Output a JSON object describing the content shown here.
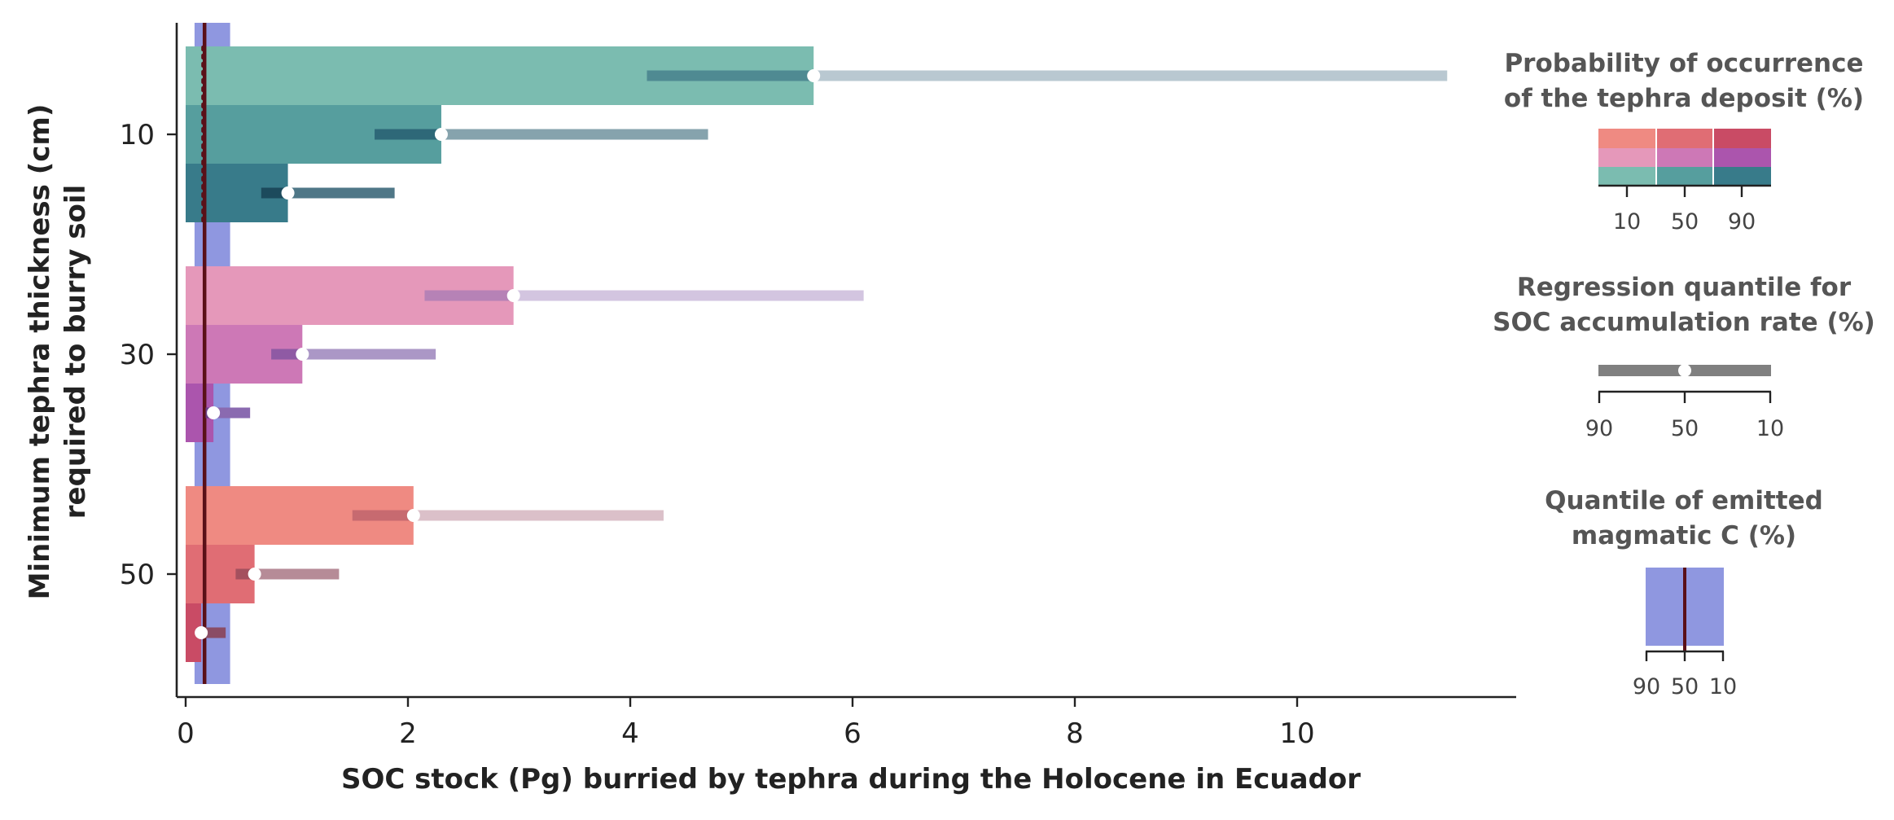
{
  "chart_data": {
    "type": "bar",
    "orientation": "horizontal",
    "xlabel": "SOC stock (Pg) burried by tephra during the Holocene in Ecuador",
    "ylabel_line1": "Minimum tephra thickness (cm)",
    "ylabel_line2": "required to burry soil",
    "xlim": [
      0,
      11.9
    ],
    "xticks": [
      "0",
      "2",
      "4",
      "6",
      "8",
      "10"
    ],
    "xtick_values": [
      0,
      2,
      4,
      6,
      8,
      10
    ],
    "yticks": [
      "10",
      "30",
      "50"
    ],
    "grid": false,
    "magmatic_c": {
      "q90": 0.08,
      "q50": 0.17,
      "q10": 0.4,
      "reference_dotted": 0.17,
      "color": "#8f97e0",
      "line_color": "#5a1018"
    },
    "groups": [
      {
        "thickness": "10",
        "bars": [
          {
            "probability": "10",
            "value": 5.65,
            "q_low": 4.15,
            "q_high": 11.35,
            "color": "#7bbcb0",
            "err_dark": "#4f8a92",
            "err_light": "#b9c8d1"
          },
          {
            "probability": "50",
            "value": 2.3,
            "q_low": 1.7,
            "q_high": 4.7,
            "color": "#569e9e",
            "err_dark": "#2e6878",
            "err_light": "#86a3ad"
          },
          {
            "probability": "90",
            "value": 0.92,
            "q_low": 0.68,
            "q_high": 1.88,
            "color": "#387b8a",
            "err_dark": "#1c4a5c",
            "err_light": "#4f7787"
          }
        ]
      },
      {
        "thickness": "30",
        "bars": [
          {
            "probability": "10",
            "value": 2.95,
            "q_low": 2.15,
            "q_high": 6.1,
            "color": "#e598ba",
            "err_dark": "#b682b6",
            "err_light": "#d3c5e0"
          },
          {
            "probability": "50",
            "value": 1.05,
            "q_low": 0.77,
            "q_high": 2.25,
            "color": "#cd78b6",
            "err_dark": "#8f5aa4",
            "err_light": "#ab97c6"
          },
          {
            "probability": "90",
            "value": 0.25,
            "q_low": 0.18,
            "q_high": 0.58,
            "color": "#ab55ad",
            "err_dark": "#6a3f8a",
            "err_light": "#8a6ab0"
          }
        ]
      },
      {
        "thickness": "50",
        "bars": [
          {
            "probability": "10",
            "value": 2.05,
            "q_low": 1.5,
            "q_high": 4.3,
            "color": "#ef8a82",
            "err_dark": "#c76a70",
            "err_light": "#dbc0c9"
          },
          {
            "probability": "50",
            "value": 0.62,
            "q_low": 0.45,
            "q_high": 1.38,
            "color": "#e06d74",
            "err_dark": "#a4505e",
            "err_light": "#b68b97"
          },
          {
            "probability": "90",
            "value": 0.14,
            "q_low": 0.1,
            "q_high": 0.36,
            "color": "#c94b65",
            "err_dark": "#7a2c45",
            "err_light": "#8a4c65"
          }
        ]
      }
    ],
    "legends": {
      "probability": {
        "title_line1": "Probability of occurrence",
        "title_line2": "of the tephra deposit (%)",
        "ticks": [
          "10",
          "50",
          "90"
        ]
      },
      "regression": {
        "title_line1": "Regression quantile for",
        "title_line2": "SOC accumulation rate (%)",
        "ticks": [
          "90",
          "50",
          "10"
        ],
        "color": "#808080"
      },
      "magmatic": {
        "title_line1": "Quantile of emitted",
        "title_line2": "magmatic C (%)",
        "ticks": [
          "90",
          "50",
          "10"
        ]
      }
    }
  }
}
